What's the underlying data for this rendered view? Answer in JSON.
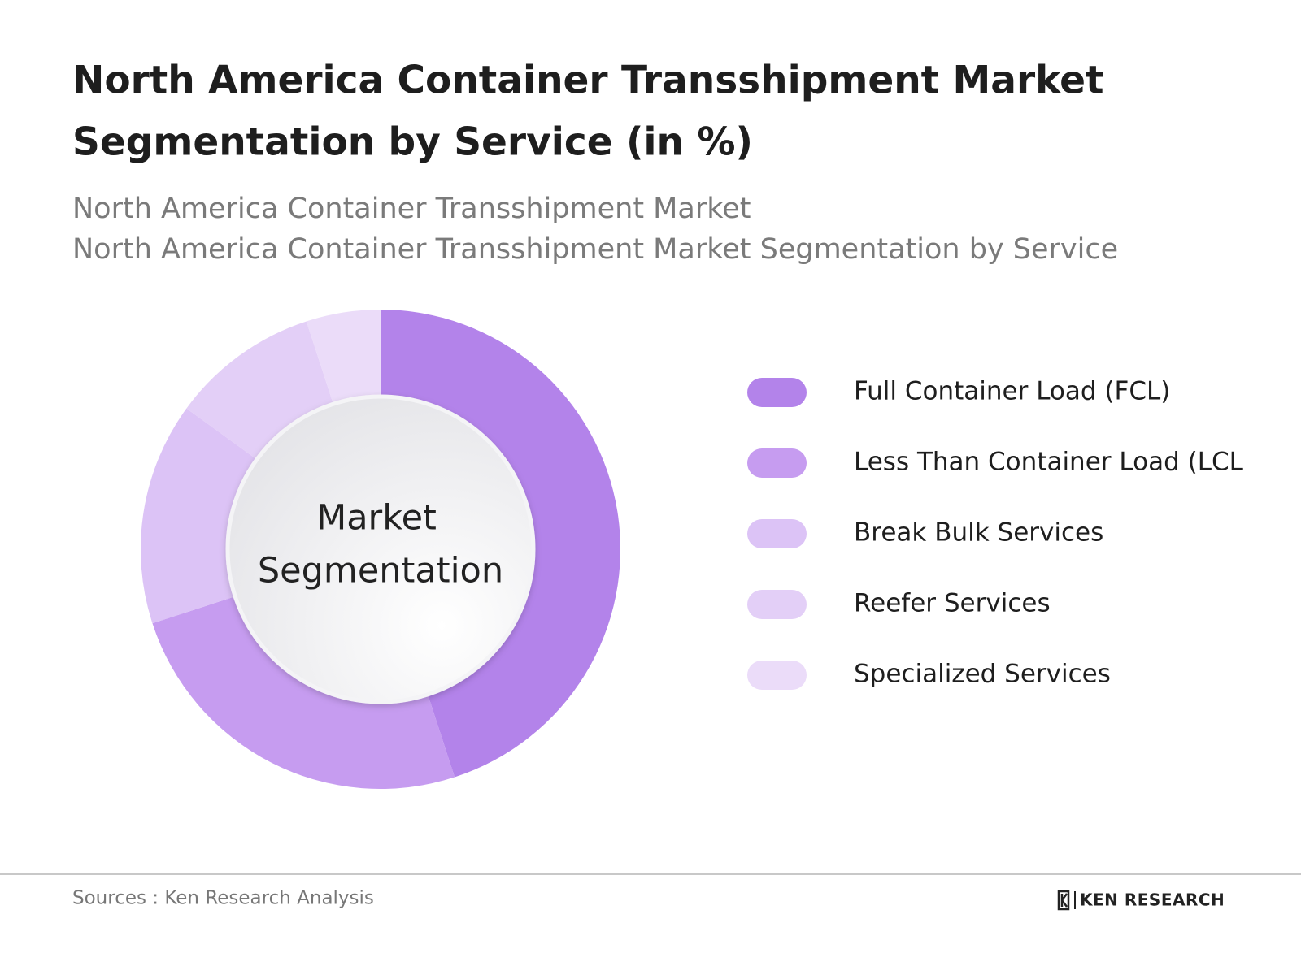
{
  "chart_data": {
    "type": "donut",
    "title_lines": [
      "North America Container Transshipment Market",
      "Segmentation by Service (in %)"
    ],
    "subtitle_lines": [
      "North America Container Transshipment Market",
      "North America Container Transshipment Market Segmentation by Service"
    ],
    "center_label_lines": [
      "Market",
      "Segmentation"
    ],
    "categories": [
      "Full Container Load (FCL)",
      "Less Than Container Load (LCL",
      "Break Bulk Services",
      "Reefer Services",
      "Specialized Services"
    ],
    "values": [
      45,
      25,
      15,
      10,
      5
    ],
    "colors": [
      "#b383ea",
      "#c69cf0",
      "#dcc3f6",
      "#e3cff7",
      "#ebdcf9"
    ]
  },
  "footer": {
    "source": "Sources : Ken Research Analysis",
    "brand": "KEN RESEARCH"
  }
}
